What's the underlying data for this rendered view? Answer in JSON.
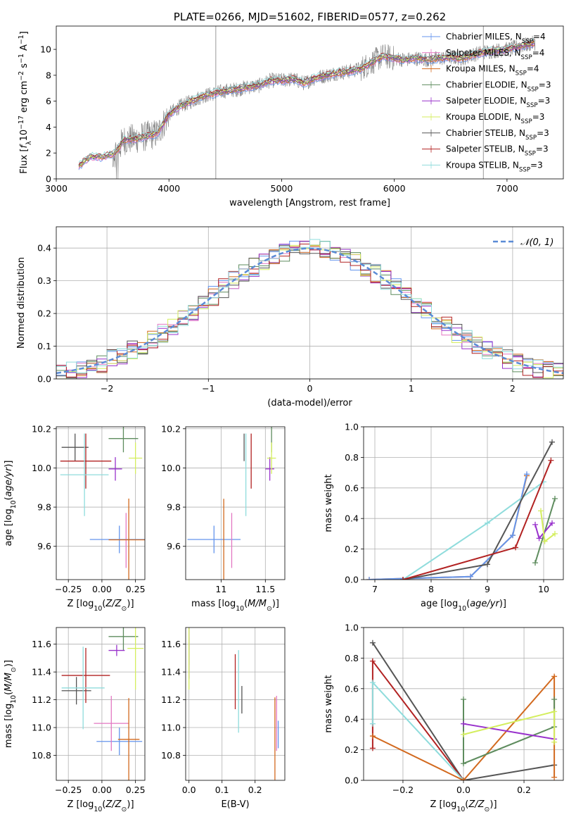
{
  "chart_data": [
    {
      "id": "spectrum",
      "type": "line",
      "title": "PLATE=0266, MJD=51602, FIBERID=0577, z=0.262",
      "xlabel": "wavelength [Angstrom, rest frame]",
      "ylabel_parts": [
        "Flux [",
        "f",
        "λ",
        "10",
        "−17",
        " erg cm",
        "−2",
        " s",
        "−1",
        " A",
        "−1",
        "]"
      ],
      "xlim": [
        3000,
        7500
      ],
      "ylim": [
        0,
        11.8
      ],
      "xticks": [
        3000,
        4000,
        5000,
        6000,
        7000
      ],
      "yticks": [
        0,
        2,
        4,
        6,
        8,
        10
      ],
      "grid": false,
      "legend_loc": "upper right",
      "data": {
        "name": "data",
        "color": "#808080",
        "x": [
          3200,
          3300,
          3400,
          3500,
          3550,
          3600,
          3700,
          3800,
          3900,
          4000,
          4100,
          4200,
          4300,
          4400,
          4500,
          4600,
          4700,
          4800,
          4900,
          5000,
          5100,
          5200,
          5300,
          5400,
          5500,
          5600,
          5700,
          5800,
          5900,
          6000,
          6100,
          6200,
          6300,
          6400,
          6500,
          6600,
          6700,
          6800,
          6900,
          7000,
          7100,
          7200,
          7250
        ],
        "y": [
          1.0,
          1.7,
          1.7,
          1.9,
          2.3,
          3.0,
          3.1,
          3.3,
          3.5,
          5.0,
          5.6,
          6.0,
          6.4,
          6.6,
          6.8,
          6.9,
          7.1,
          7.2,
          7.6,
          7.6,
          7.7,
          7.4,
          7.8,
          8.0,
          8.2,
          8.3,
          8.5,
          9.0,
          9.5,
          9.3,
          9.2,
          9.3,
          9.2,
          9.3,
          9.4,
          9.3,
          9.6,
          9.8,
          9.9,
          10.0,
          10.2,
          10.4,
          10.5
        ]
      },
      "series": [
        {
          "name_parts": [
            "Chabrier MILES, N",
            "SSP",
            "=4"
          ],
          "color": "#6495ed"
        },
        {
          "name_parts": [
            "Salpeter MILES, N",
            "SSP",
            "=4"
          ],
          "color": "#e377c2"
        },
        {
          "name_parts": [
            "Kroupa MILES, N",
            "SSP",
            "=4"
          ],
          "color": "#d2691e"
        },
        {
          "name_parts": [
            "Chabrier ELODIE, N",
            "SSP",
            "=3"
          ],
          "color": "#5e8c5e"
        },
        {
          "name_parts": [
            "Salpeter ELODIE, N",
            "SSP",
            "=3"
          ],
          "color": "#9932cc"
        },
        {
          "name_parts": [
            "Kroupa ELODIE, N",
            "SSP",
            "=3"
          ],
          "color": "#d4ee5e"
        },
        {
          "name_parts": [
            "Chabrier STELIB, N",
            "SSP",
            "=3"
          ],
          "color": "#555555"
        },
        {
          "name_parts": [
            "Salpeter STELIB, N",
            "SSP",
            "=3"
          ],
          "color": "#b22222"
        },
        {
          "name_parts": [
            "Kroupa STELIB, N",
            "SSP",
            "=3"
          ],
          "color": "#8fdcdc"
        }
      ]
    },
    {
      "id": "residuals",
      "type": "histogram",
      "xlabel": "(data-model)/error",
      "ylabel": "Normed distribution",
      "xlim": [
        -2.5,
        2.5
      ],
      "ylim": [
        0,
        0.465
      ],
      "xticks": [
        -2,
        -1,
        0,
        1,
        2
      ],
      "yticks": [
        0.0,
        0.1,
        0.2,
        0.3,
        0.4
      ],
      "grid": true,
      "legend_loc": "upper right",
      "reference": {
        "name": "𝒩(0, 1)",
        "type": "gaussian",
        "mean": 0,
        "sigma": 1,
        "color": "#5b8bd6",
        "dashed": true
      }
    },
    {
      "id": "age-vs-Z",
      "type": "errorbar",
      "xlabel_parts": [
        "Z [log",
        "10",
        "(",
        "Z/Z",
        "⊙",
        ")]"
      ],
      "ylabel_parts": [
        "age  [log",
        "10",
        "(",
        "age/yr",
        ")]"
      ],
      "xlim": [
        -0.34,
        0.32
      ],
      "ylim": [
        9.43,
        10.21
      ],
      "xticks": [
        -0.25,
        0.0,
        0.25
      ],
      "xticklabels": [
        "−0.25",
        "0.00",
        "0.25"
      ],
      "yticks": [
        9.6,
        9.8,
        10.0,
        10.2
      ],
      "grid": true,
      "points": [
        {
          "series": 0,
          "x": 0.13,
          "xerr": 0.22,
          "y": 9.635,
          "yerr": 0.0
        },
        {
          "series": 1,
          "x": 0.18,
          "xerr": 0.0,
          "y": 9.63,
          "yerr": 0.0
        },
        {
          "series": 2,
          "x": 0.2,
          "xerr": 0.15,
          "y": 9.633,
          "yerr": 0.0
        },
        {
          "series": 3,
          "x": 0.16,
          "xerr": 0.11,
          "y": 10.15,
          "yerr": 0.0
        },
        {
          "series": 4,
          "x": 0.1,
          "xerr": 0.05,
          "y": 9.995,
          "yerr": 0.06
        },
        {
          "series": 5,
          "x": 0.25,
          "xerr": 0.05,
          "y": 10.05,
          "yerr": 0.08
        },
        {
          "series": 6,
          "x": -0.2,
          "xerr": 0.1,
          "y": 10.105,
          "yerr": 0.0
        },
        {
          "series": 7,
          "x": -0.12,
          "xerr": 0.19,
          "y": 10.035,
          "yerr": 0.0
        },
        {
          "series": 8,
          "x": -0.13,
          "xerr": 0.18,
          "y": 9.965,
          "yerr": 0.0
        }
      ]
    },
    {
      "id": "age-vs-mass",
      "type": "errorbar",
      "xlabel_parts": [
        "mass [log",
        "10",
        "(",
        "M/M",
        "⊙",
        ")]"
      ],
      "ylabel": "",
      "xlim": [
        10.6,
        11.72
      ],
      "ylim": [
        9.43,
        10.21
      ],
      "xticks": [
        11.0,
        11.5
      ],
      "yticks": [
        9.6,
        9.8,
        10.0,
        10.2
      ],
      "grid": true,
      "points": [
        {
          "series": 0,
          "x": 10.92,
          "xerr": 0.3,
          "y": 9.635,
          "yerr": 0.0
        },
        {
          "series": 1,
          "x": 11.12,
          "xerr": 0.0,
          "y": 9.63,
          "yerr": 0.0
        },
        {
          "series": 2,
          "x": 11.03,
          "xerr": 0.0,
          "y": 9.632,
          "yerr": 0.0
        },
        {
          "series": 3,
          "x": 11.57,
          "xerr": 0.0,
          "y": 10.15,
          "yerr": 0.0
        },
        {
          "series": 4,
          "x": 11.55,
          "xerr": 0.05,
          "y": 9.995,
          "yerr": 0.06
        },
        {
          "series": 5,
          "x": 11.57,
          "xerr": 0.05,
          "y": 10.05,
          "yerr": 0.08
        },
        {
          "series": 6,
          "x": 11.26,
          "xerr": 0.0,
          "y": 10.105,
          "yerr": 0.0
        },
        {
          "series": 7,
          "x": 11.34,
          "xerr": 0.0,
          "y": 10.035,
          "yerr": 0.0
        },
        {
          "series": 8,
          "x": 11.28,
          "xerr": 0.0,
          "y": 9.965,
          "yerr": 0.0
        }
      ]
    },
    {
      "id": "weight-vs-age",
      "type": "line",
      "xlabel_parts": [
        "age  [log",
        "10",
        "(",
        "age/yr",
        ")]"
      ],
      "ylabel": "mass weight",
      "xlim": [
        6.8,
        10.35
      ],
      "ylim": [
        0,
        1.0
      ],
      "xticks": [
        7,
        8,
        9,
        10
      ],
      "yticks": [
        0.0,
        0.2,
        0.4,
        0.6,
        0.8,
        1.0
      ],
      "grid": true,
      "lines": [
        {
          "series": 2,
          "x": [
            6.9,
            8.7,
            9.45,
            9.7
          ],
          "y": [
            0.0,
            0.02,
            0.29,
            0.68
          ]
        },
        {
          "series": 0,
          "x": [
            6.9,
            8.7,
            9.45,
            9.7
          ],
          "y": [
            0.0,
            0.02,
            0.29,
            0.69
          ]
        },
        {
          "series": 8,
          "x": [
            7.5,
            9.0,
            10.0
          ],
          "y": [
            0.0,
            0.37,
            0.64
          ]
        },
        {
          "series": 6,
          "x": [
            7.5,
            9.0,
            10.15
          ],
          "y": [
            0.0,
            0.1,
            0.9
          ]
        },
        {
          "series": 7,
          "x": [
            7.5,
            9.5,
            10.13
          ],
          "y": [
            0.0,
            0.21,
            0.78
          ]
        },
        {
          "series": 3,
          "x": [
            9.85,
            10.2
          ],
          "y": [
            0.11,
            0.53
          ]
        },
        {
          "series": 4,
          "x": [
            9.85,
            9.92,
            10.15
          ],
          "y": [
            0.36,
            0.27,
            0.37
          ]
        },
        {
          "series": 5,
          "x": [
            9.95,
            10.02,
            10.2
          ],
          "y": [
            0.45,
            0.25,
            0.3
          ]
        }
      ]
    },
    {
      "id": "mass-vs-Z",
      "type": "errorbar",
      "xlabel_parts": [
        "Z [log",
        "10",
        "(",
        "Z/Z",
        "⊙",
        ")]"
      ],
      "ylabel_parts": [
        "mass [log",
        "10",
        "(",
        "M/M",
        "⊙",
        ")]"
      ],
      "xlim": [
        -0.34,
        0.32
      ],
      "ylim": [
        10.62,
        11.72
      ],
      "xticks": [
        -0.25,
        0.0,
        0.25
      ],
      "xticklabels": [
        "−0.25",
        "0.00",
        "0.25"
      ],
      "yticks": [
        10.8,
        11.0,
        11.2,
        11.4,
        11.6
      ],
      "grid": true,
      "points": [
        {
          "series": 0,
          "x": 0.13,
          "xerr": 0.17,
          "y": 10.9,
          "yerr": 0.0
        },
        {
          "series": 1,
          "x": 0.07,
          "xerr": 0.13,
          "y": 11.03,
          "yerr": 0.0
        },
        {
          "series": 2,
          "x": 0.2,
          "xerr": 0.08,
          "y": 10.915,
          "yerr": 0.0
        },
        {
          "series": 3,
          "x": 0.16,
          "xerr": 0.11,
          "y": 11.655,
          "yerr": 0.0
        },
        {
          "series": 4,
          "x": 0.11,
          "xerr": 0.06,
          "y": 11.555,
          "yerr": 0.04
        },
        {
          "series": 5,
          "x": 0.25,
          "xerr": 0.06,
          "y": 11.57,
          "yerr": 0.0
        },
        {
          "series": 6,
          "x": -0.19,
          "xerr": 0.11,
          "y": 11.265,
          "yerr": 0.0
        },
        {
          "series": 7,
          "x": -0.12,
          "xerr": 0.18,
          "y": 11.375,
          "yerr": 0.0
        },
        {
          "series": 8,
          "x": -0.14,
          "xerr": 0.16,
          "y": 11.285,
          "yerr": 0.0
        }
      ]
    },
    {
      "id": "mass-vs-ebv",
      "type": "errorbar",
      "xlabel": "E(B-V)",
      "ylabel": "",
      "xlim": [
        -0.01,
        0.29
      ],
      "ylim": [
        10.62,
        11.72
      ],
      "xticks": [
        0.0,
        0.1,
        0.2
      ],
      "xticklabels": [
        "0.0",
        "0.1",
        "0.2"
      ],
      "yticks": [
        10.8,
        11.0,
        11.2,
        11.4,
        11.6
      ],
      "grid": true,
      "points": [
        {
          "series": 0,
          "x": 0.27,
          "xerr": 0.0,
          "y": 10.95,
          "yerr": 0.0
        },
        {
          "series": 1,
          "x": 0.265,
          "xerr": 0.0,
          "y": 11.03,
          "yerr": 0.0
        },
        {
          "series": 2,
          "x": 0.26,
          "xerr": 0.0,
          "y": 10.92,
          "yerr": 0.0
        },
        {
          "series": 3,
          "x": 0.0,
          "xerr": 0.0,
          "y": 11.55,
          "yerr": 0.0
        },
        {
          "series": 4,
          "x": 0.0,
          "xerr": 0.0,
          "y": 11.55,
          "yerr": 0.0
        },
        {
          "series": 5,
          "x": 0.0,
          "xerr": 0.0,
          "y": 11.57,
          "yerr": 0.0
        },
        {
          "series": 6,
          "x": 0.16,
          "xerr": 0.0,
          "y": 11.2,
          "yerr": 0.0
        },
        {
          "series": 7,
          "x": 0.14,
          "xerr": 0.0,
          "y": 11.33,
          "yerr": 0.0
        },
        {
          "series": 8,
          "x": 0.15,
          "xerr": 0.0,
          "y": 11.26,
          "yerr": 0.0
        }
      ]
    },
    {
      "id": "weight-vs-Z",
      "type": "line",
      "xlabel_parts": [
        "Z [log",
        "10",
        "(",
        "Z/Z",
        "⊙",
        ")]"
      ],
      "ylabel": "mass weight",
      "xlim": [
        -0.33,
        0.33
      ],
      "ylim": [
        0,
        1.0
      ],
      "xticks": [
        -0.2,
        0.0,
        0.2
      ],
      "xticklabels": [
        "−0.2",
        "0.0",
        "0.2"
      ],
      "yticks": [
        0.0,
        0.2,
        0.4,
        0.6,
        0.8,
        1.0
      ],
      "grid": true,
      "lines": [
        {
          "series": 6,
          "x": [
            -0.3,
            0.0,
            0.3
          ],
          "y": [
            0.9,
            0.0,
            0.1
          ]
        },
        {
          "series": 7,
          "x": [
            -0.3,
            -0.3,
            0.0
          ],
          "y": [
            0.21,
            0.78,
            0.0
          ]
        },
        {
          "series": 8,
          "x": [
            -0.3,
            -0.3,
            0.0
          ],
          "y": [
            0.37,
            0.64,
            0.0
          ]
        },
        {
          "series": 2,
          "x": [
            -0.3,
            0.0,
            0.3,
            0.3
          ],
          "y": [
            0.29,
            0.0,
            0.68,
            0.02
          ]
        },
        {
          "series": 3,
          "x": [
            0.0,
            0.0,
            0.3,
            0.3
          ],
          "y": [
            0.53,
            0.11,
            0.35,
            0.53
          ]
        },
        {
          "series": 4,
          "x": [
            0.0,
            0.3
          ],
          "y": [
            0.37,
            0.27
          ]
        },
        {
          "series": 5,
          "x": [
            0.0,
            0.3,
            0.3
          ],
          "y": [
            0.3,
            0.45,
            0.25
          ]
        }
      ]
    }
  ]
}
